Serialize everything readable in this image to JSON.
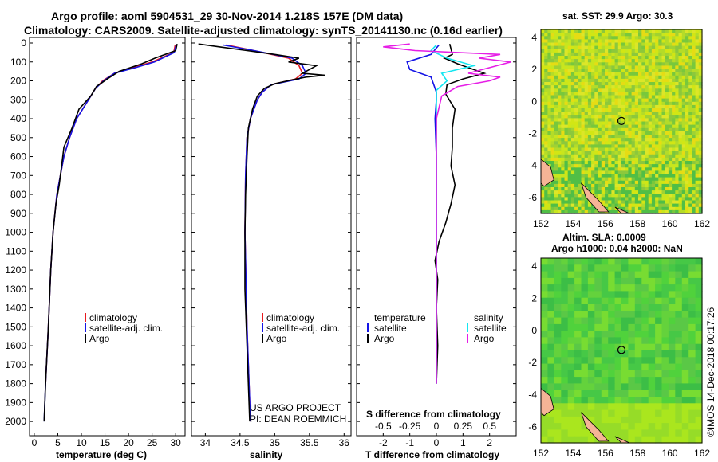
{
  "title_line1": "Argo profile: aoml 5904531_29 30-Nov-2014 1.218S 157E (DM data)",
  "title_line2": "Climatology: CARS2009. Satellite-adjusted climatology: synTS_20141130.nc (0.16d earlier)",
  "colors": {
    "climatology": "#e8191e",
    "satellite": "#1414e6",
    "argo": "#000000",
    "argo_s": "#e61ee6",
    "satellite_s": "#14e6f0"
  },
  "depth_ticks": [
    "0",
    "100",
    "200",
    "300",
    "400",
    "500",
    "600",
    "700",
    "800",
    "900",
    "1000",
    "1100",
    "1200",
    "1300",
    "1400",
    "1500",
    "1600",
    "1700",
    "1800",
    "1900",
    "2000"
  ],
  "legend": {
    "climatology": "climatology",
    "satellite": "satellite-adj. clim.",
    "argo": "Argo",
    "temperature": "temperature",
    "salinity": "salinity",
    "satellite_short": "satellite"
  },
  "credit_line1": "US ARGO PROJECT",
  "credit_line2": "PI: DEAN ROEMMICH",
  "timestamp": "©IMOS 14-Dec-2018 00:17:26",
  "map_xticks": [
    "152",
    "154",
    "156",
    "158",
    "160",
    "162"
  ],
  "map_yticks": [
    "4",
    "2",
    "0",
    "-2",
    "-4",
    "-6"
  ],
  "chart_data": [
    {
      "type": "line",
      "xlabel": "temperature (deg C)",
      "xlim": [
        -1,
        32
      ],
      "xticks": [
        0,
        5,
        10,
        15,
        20,
        25,
        30
      ],
      "ylim": [
        0,
        2050
      ],
      "series": [
        {
          "name": "climatology",
          "depth": [
            10,
            50,
            100,
            130,
            160,
            200,
            240,
            300,
            400,
            500,
            600,
            800,
            1000,
            1200,
            1500,
            1800
          ],
          "values": [
            29.9,
            29.6,
            25,
            21,
            17,
            14.5,
            13,
            11.5,
            9,
            7.5,
            6.3,
            4.8,
            4,
            3.5,
            3.0,
            2.4
          ]
        },
        {
          "name": "satellite-adj. clim.",
          "depth": [
            10,
            50,
            100,
            130,
            160,
            200,
            240,
            300,
            400,
            500,
            600,
            800,
            1000,
            1200,
            1500,
            1800,
            2000
          ],
          "values": [
            30.1,
            29.7,
            25.5,
            21.5,
            17,
            14.7,
            13,
            11.5,
            9,
            7.5,
            6.3,
            4.8,
            4,
            3.5,
            3.0,
            2.4,
            2.1
          ]
        },
        {
          "name": "Argo",
          "depth": [
            5,
            40,
            80,
            110,
            150,
            190,
            230,
            280,
            350,
            450,
            550,
            650,
            750,
            850,
            1000,
            1200,
            1500,
            1800,
            2000
          ],
          "values": [
            30.3,
            30.0,
            25.6,
            22.8,
            18,
            15.5,
            13.2,
            12,
            9.5,
            8,
            6.3,
            5.8,
            5.3,
            4.6,
            4.0,
            3.5,
            3.0,
            2.4,
            2.1
          ]
        }
      ]
    },
    {
      "type": "line",
      "xlabel": "salinity",
      "xlim": [
        33.8,
        36.1
      ],
      "xticks": [
        34,
        34.5,
        35,
        35.5,
        36
      ],
      "ylim": [
        0,
        2050
      ],
      "series": [
        {
          "name": "climatology",
          "depth": [
            10,
            40,
            80,
            120,
            160,
            190,
            220,
            260,
            300,
            400,
            500,
            700,
            1000,
            1500,
            2000
          ],
          "values": [
            34.3,
            34.7,
            35.2,
            35.35,
            35.4,
            35.3,
            34.95,
            34.82,
            34.75,
            34.65,
            34.6,
            34.58,
            34.57,
            34.6,
            34.65
          ]
        },
        {
          "name": "satellite-adj. clim.",
          "depth": [
            10,
            40,
            80,
            120,
            160,
            190,
            220,
            260,
            300,
            400,
            500,
            700,
            1000,
            1500,
            2000
          ],
          "values": [
            34.25,
            34.7,
            35.25,
            35.4,
            35.45,
            35.35,
            34.95,
            34.82,
            34.75,
            34.65,
            34.6,
            34.58,
            34.57,
            34.6,
            34.65
          ]
        },
        {
          "name": "Argo",
          "depth": [
            5,
            20,
            40,
            60,
            80,
            100,
            120,
            140,
            160,
            170,
            180,
            195,
            215,
            240,
            280,
            350,
            450,
            600,
            800,
            1000,
            1300,
            1600,
            2000
          ],
          "values": [
            33.9,
            34.2,
            34.6,
            35.0,
            35.35,
            35.2,
            35.6,
            35.5,
            35.4,
            35.72,
            35.45,
            35.25,
            35.0,
            34.85,
            34.75,
            34.68,
            34.62,
            34.6,
            34.58,
            34.57,
            34.57,
            34.6,
            34.64
          ]
        }
      ]
    },
    {
      "type": "line",
      "xlabel": "T difference from climatology",
      "xlabel2": "S difference from climatology",
      "xlim": [
        -3.0,
        3.0
      ],
      "xticks": [
        -2,
        -1,
        0,
        1,
        2
      ],
      "xticks2": [
        "-0.5",
        "-0.25",
        "0",
        "0.25",
        "0.5"
      ],
      "ylim": [
        0,
        2050
      ],
      "series": [
        {
          "name": "temperature satellite",
          "depth": [
            10,
            60,
            100,
            140,
            180,
            220,
            260,
            300,
            400,
            600,
            800,
            1000,
            1200,
            1500,
            1800
          ],
          "values": [
            0.1,
            -0.2,
            -1.1,
            -1.0,
            -0.2,
            -0.1,
            0,
            0,
            -0.05,
            0,
            0,
            0,
            0,
            0,
            0
          ]
        },
        {
          "name": "temperature Argo",
          "depth": [
            5,
            60,
            80,
            110,
            140,
            160,
            190,
            220,
            270,
            350,
            450,
            550,
            650,
            750,
            850,
            950,
            1050,
            1150,
            1250,
            1400,
            1600,
            1800
          ],
          "values": [
            0.5,
            0.6,
            0.3,
            0.8,
            1.4,
            1.8,
            1.0,
            0.4,
            0.35,
            0.7,
            0.6,
            0.6,
            0.55,
            0.7,
            0.55,
            0.35,
            0.1,
            -0.05,
            0.05,
            0.0,
            0.05,
            0.0
          ]
        },
        {
          "name": "salinity satellite",
          "depth": [
            10,
            40,
            80,
            120,
            160,
            200,
            250,
            300,
            400,
            600,
            1000,
            1500,
            1800
          ],
          "values": [
            0.0,
            -0.05,
            0.1,
            0.35,
            0.05,
            0.1,
            0.0,
            0.0,
            0.0,
            0.0,
            0.0,
            0.0,
            0.0
          ]
        },
        {
          "name": "salinity Argo",
          "depth": [
            5,
            20,
            40,
            60,
            80,
            100,
            130,
            160,
            180,
            200,
            230,
            280,
            400,
            600,
            1000,
            1500,
            1800
          ],
          "values": [
            -0.25,
            -0.5,
            -0.2,
            0.6,
            0.4,
            0.7,
            0.5,
            0.3,
            0.6,
            0.5,
            0.2,
            0.05,
            0.0,
            0.0,
            0.0,
            0.0,
            0.0
          ]
        }
      ]
    },
    {
      "type": "heatmap",
      "title": "sat. SST: 29.9 Argo: 30.3",
      "xlim": [
        152,
        162
      ],
      "ylim": [
        -7,
        4.5
      ],
      "marker": {
        "lon": 157,
        "lat": -1.218
      }
    },
    {
      "type": "heatmap",
      "title": "Altim. SLA: 0.0009",
      "subtitle": "Argo h1000: 0.04 h2000: NaN",
      "xlim": [
        152,
        162
      ],
      "ylim": [
        -7,
        4.5
      ],
      "marker": {
        "lon": 157,
        "lat": -1.218
      }
    }
  ]
}
